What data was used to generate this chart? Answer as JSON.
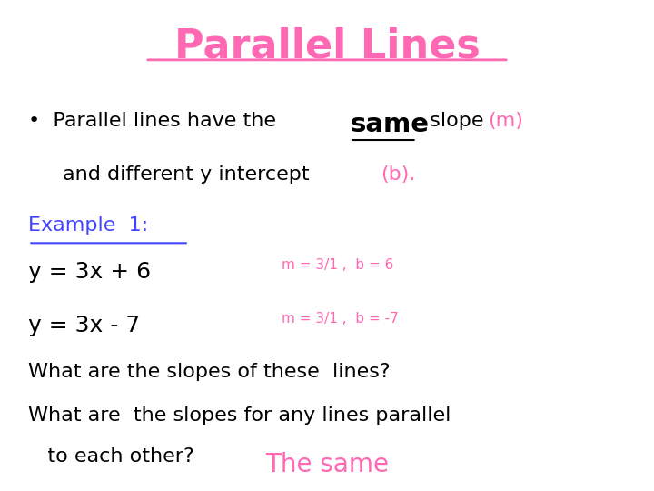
{
  "title": "Parallel Lines",
  "title_color": "#FF69B4",
  "title_fontsize": 32,
  "background_color": "#ffffff",
  "bullet_text_black": "Parallel lines have the ",
  "bullet_text_bold_underline": "same",
  "bullet_text_after_same": "  slope ",
  "bullet_m_color": "#FF69B4",
  "bullet_text_m": "(m)",
  "bullet_line2": "and different y intercept ",
  "bullet_text_b": "(b).",
  "example_label": "Example  1:",
  "example_color": "#4444FF",
  "eq1": "y = 3x + 6",
  "eq2": "y = 3x - 7",
  "eq1_note": "m = 3/1 ,  b = 6",
  "eq2_note": "m = 3/1 ,  b = -7",
  "note_color": "#FF69B4",
  "q1": "What are the slopes of these  lines?",
  "q2_line1": "What are  the slopes for any lines parallel",
  "q2_line2": "   to each other?",
  "answer": "The same",
  "answer_color": "#FF69B4",
  "text_color_black": "#000000",
  "text_color_blue": "#4444FF"
}
